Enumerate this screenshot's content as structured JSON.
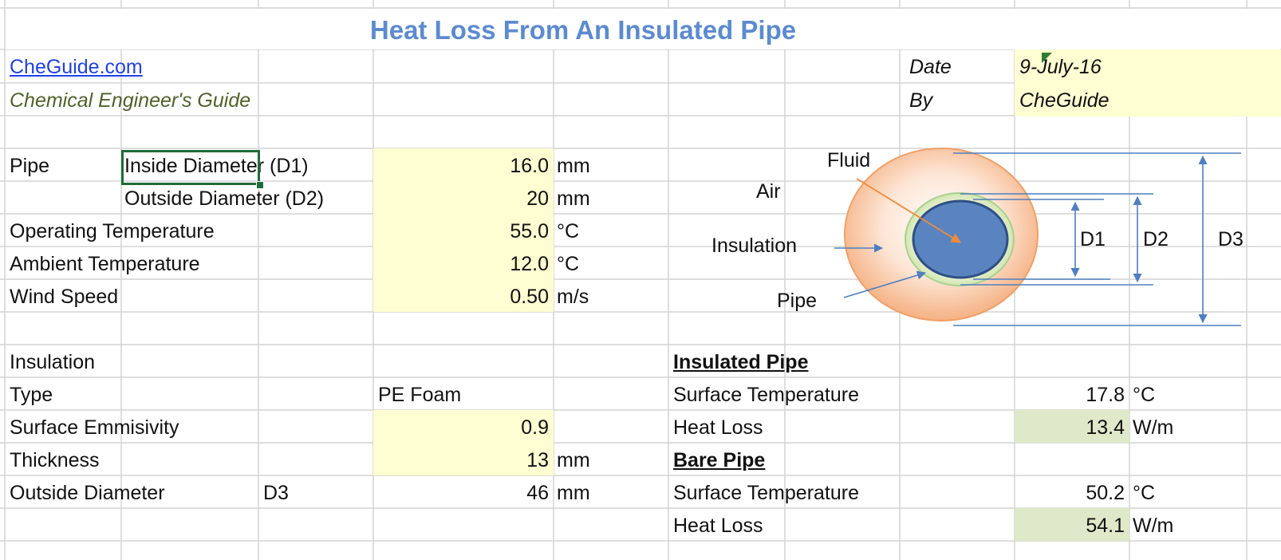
{
  "sheet": {
    "title": "Heat Loss From An Insulated Pipe",
    "site_link": "CheGuide.com",
    "subtitle": "Chemical Engineer's Guide",
    "date_label": "Date",
    "date_value": "9-July-16",
    "by_label": "By",
    "by_value": "CheGuide"
  },
  "pipe": {
    "section_label": "Pipe",
    "inside_label": "Inside Diameter (D1)",
    "inside_value": "16.0",
    "inside_unit": "mm",
    "outside_label": "Outside Diameter (D2)",
    "outside_value": "20",
    "outside_unit": "mm",
    "op_temp_label": "Operating Temperature",
    "op_temp_value": "55.0",
    "op_temp_unit": "°C",
    "amb_temp_label": "Ambient Temperature",
    "amb_temp_value": "12.0",
    "amb_temp_unit": "°C",
    "wind_label": "Wind Speed",
    "wind_value": "0.50",
    "wind_unit": "m/s"
  },
  "insulation": {
    "section_label": "Insulation",
    "type_label": "Type",
    "type_value": "PE Foam",
    "emis_label": "Surface Emmisivity",
    "emis_value": "0.9",
    "thick_label": "Thickness",
    "thick_value": "13",
    "thick_unit": "mm",
    "od_label": "Outside Diameter",
    "od_tag": "D3",
    "od_value": "46",
    "od_unit": "mm"
  },
  "results": {
    "insulated_header": "Insulated Pipe",
    "ins_surf_label": "Surface Temperature",
    "ins_surf_value": "17.8",
    "ins_surf_unit": "°C",
    "ins_loss_label": "Heat Loss",
    "ins_loss_value": "13.4",
    "ins_loss_unit": "W/m",
    "bare_header": "Bare Pipe",
    "bare_surf_label": "Surface Temperature",
    "bare_surf_value": "50.2",
    "bare_surf_unit": "°C",
    "bare_loss_label": "Heat Loss",
    "bare_loss_value": "54.1",
    "bare_loss_unit": "W/m"
  },
  "diagram": {
    "fluid": "Fluid",
    "air": "Air",
    "insulation": "Insulation",
    "pipe": "Pipe",
    "d1": "D1",
    "d2": "D2",
    "d3": "D3"
  },
  "colors": {
    "input_fill": "#fffdd2",
    "result_fill": "#dfe8c8",
    "title": "#5b8bd0",
    "link": "#1f42e6",
    "subtitle": "#4f6228",
    "gridline": "#d4d4d4"
  }
}
